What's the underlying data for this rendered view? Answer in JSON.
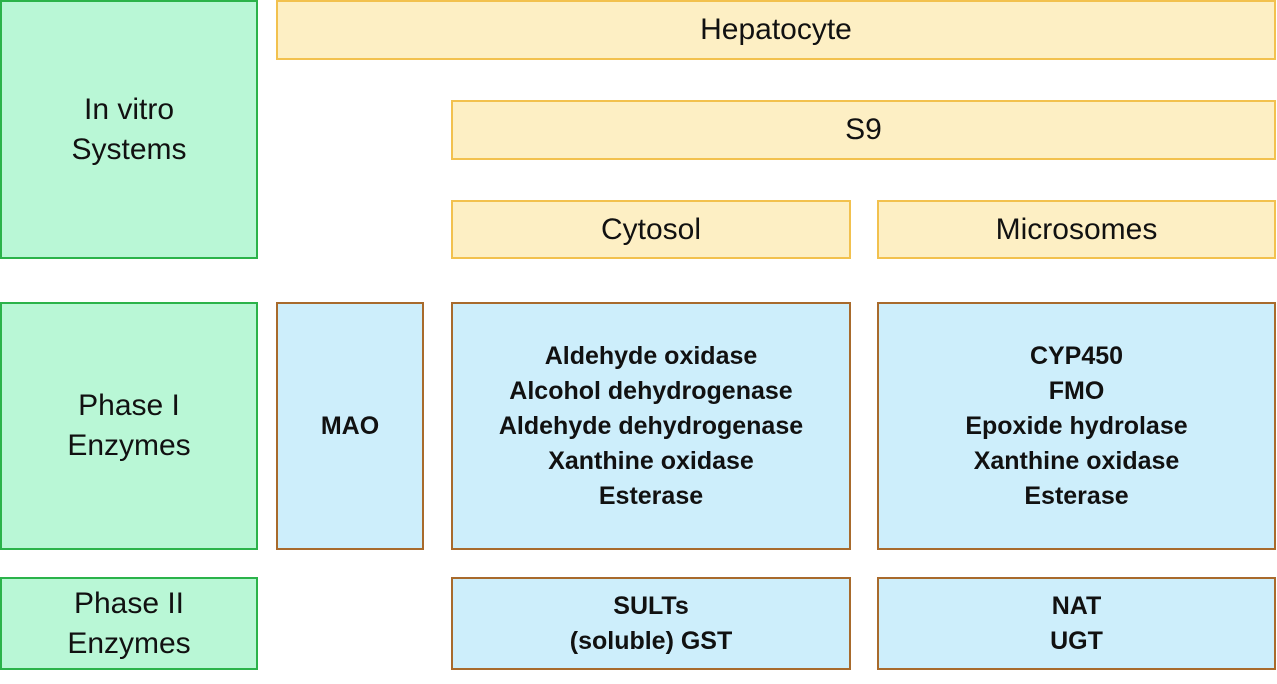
{
  "row_labels": {
    "in_vitro": [
      "In vitro",
      "Systems"
    ],
    "phase1": [
      "Phase I",
      "Enzymes"
    ],
    "phase2": [
      "Phase II",
      "Enzymes"
    ]
  },
  "systems": {
    "hepatocyte": "Hepatocyte",
    "s9": "S9",
    "cytosol": "Cytosol",
    "microsomes": "Microsomes"
  },
  "phase1_enzymes": {
    "mao": [
      "MAO"
    ],
    "cytosol": [
      "Aldehyde oxidase",
      "Alcohol dehydrogenase",
      "Aldehyde dehydrogenase",
      "Xanthine oxidase",
      "Esterase"
    ],
    "microsomes": [
      "CYP450",
      "FMO",
      "Epoxide hydrolase",
      "Xanthine oxidase",
      "Esterase"
    ]
  },
  "phase2_enzymes": {
    "cytosol": [
      "SULTs",
      "(soluble) GST"
    ],
    "microsomes": [
      "NAT",
      "UGT"
    ]
  },
  "colors": {
    "label_fill": "#b9f7d6",
    "label_border": "#2bb34a",
    "system_fill": "#fdefc4",
    "system_border": "#f2c14e",
    "enzyme_fill": "#cdeefb",
    "enzyme_border": "#a86a2c"
  }
}
